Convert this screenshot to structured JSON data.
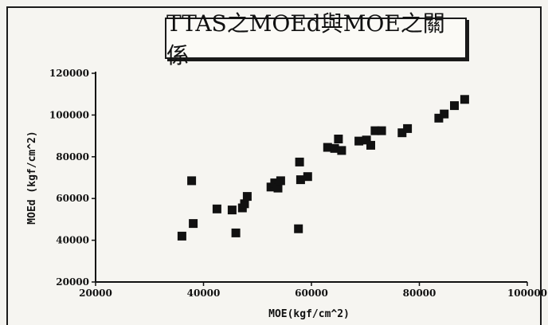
{
  "chart_data": {
    "type": "scatter",
    "title": "TTAS之MOEd與MOE之關係",
    "xlabel": "MOE(kgf/cm^2)",
    "ylabel": "MOEd (kgf/cm^2)",
    "xlim": [
      20000,
      100000
    ],
    "ylim": [
      20000,
      120000
    ],
    "x_ticks": [
      "20000",
      "40000",
      "60000",
      "80000",
      "100000"
    ],
    "y_ticks": [
      "20000",
      "40000",
      "60000",
      "80000",
      "100000",
      "120000"
    ],
    "grid": false,
    "legend": "none",
    "marker_color": "#111111",
    "points": [
      {
        "x": 36000,
        "y": 42000
      },
      {
        "x": 37800,
        "y": 68500
      },
      {
        "x": 38100,
        "y": 48000
      },
      {
        "x": 42500,
        "y": 55000
      },
      {
        "x": 45300,
        "y": 54500
      },
      {
        "x": 46000,
        "y": 43500
      },
      {
        "x": 47200,
        "y": 55500
      },
      {
        "x": 47600,
        "y": 57500
      },
      {
        "x": 48100,
        "y": 61000
      },
      {
        "x": 52500,
        "y": 65500
      },
      {
        "x": 53200,
        "y": 67500
      },
      {
        "x": 53800,
        "y": 65000
      },
      {
        "x": 54300,
        "y": 68500
      },
      {
        "x": 57600,
        "y": 45500
      },
      {
        "x": 57800,
        "y": 77500
      },
      {
        "x": 58000,
        "y": 69000
      },
      {
        "x": 59300,
        "y": 70500
      },
      {
        "x": 63000,
        "y": 84500
      },
      {
        "x": 64300,
        "y": 84000
      },
      {
        "x": 65000,
        "y": 88500
      },
      {
        "x": 65600,
        "y": 83000
      },
      {
        "x": 68800,
        "y": 87500
      },
      {
        "x": 70200,
        "y": 88000
      },
      {
        "x": 71000,
        "y": 85500
      },
      {
        "x": 71800,
        "y": 92500
      },
      {
        "x": 73000,
        "y": 92500
      },
      {
        "x": 76800,
        "y": 91500
      },
      {
        "x": 77800,
        "y": 93500
      },
      {
        "x": 83600,
        "y": 98500
      },
      {
        "x": 84600,
        "y": 100500
      },
      {
        "x": 86500,
        "y": 104500
      },
      {
        "x": 88400,
        "y": 107500
      }
    ]
  }
}
